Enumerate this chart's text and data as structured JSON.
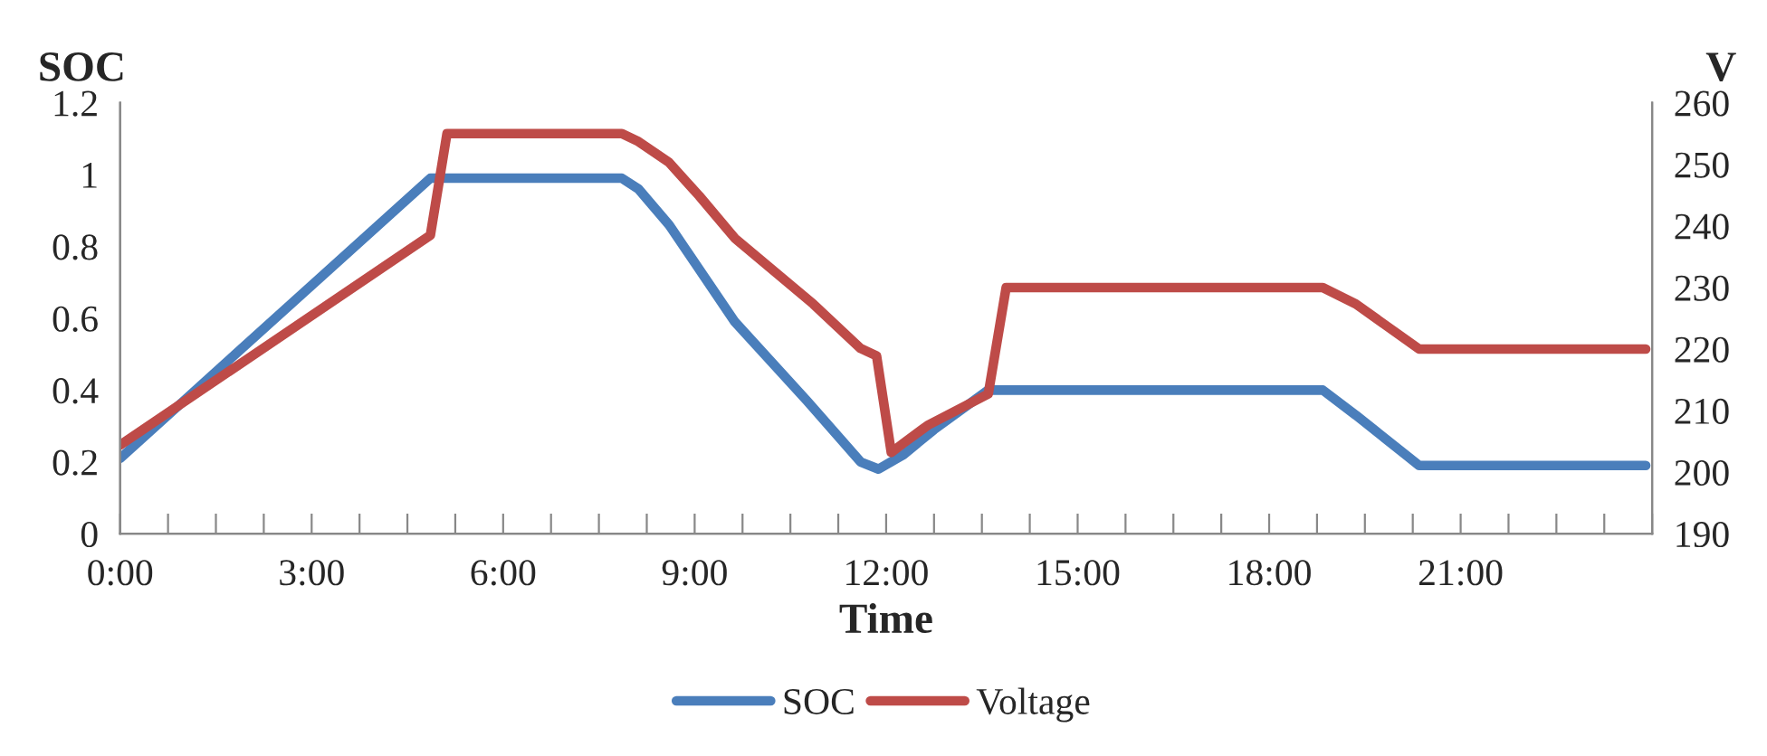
{
  "chart_data": {
    "type": "line",
    "xlabel": "Time",
    "ylabel": "SOC",
    "y2label": "V",
    "series": [
      {
        "name": "SOC",
        "color": "#4a7ebb",
        "x": [
          0,
          4.86,
          7.86,
          8.12,
          8.6,
          9.63,
          10.76,
          11.6,
          11.88,
          12.27,
          12.75,
          13.6,
          18.84,
          19.36,
          20.35,
          23.9
        ],
        "values": [
          0.21,
          0.99,
          0.99,
          0.96,
          0.86,
          0.59,
          0.37,
          0.2,
          0.18,
          0.22,
          0.29,
          0.4,
          0.4,
          0.33,
          0.19,
          0.19
        ]
      },
      {
        "name": "Voltage",
        "color": "#be4b48",
        "axis": "y2",
        "x": [
          0,
          4.86,
          5.12,
          7.86,
          8.12,
          8.6,
          9.07,
          9.63,
          10.86,
          11.6,
          11.85,
          12.08,
          12.27,
          12.65,
          13.6,
          13.88,
          18.84,
          19.36,
          20.35,
          23.9
        ],
        "values": [
          204.4,
          238.5,
          255,
          255,
          253.7,
          250.3,
          244.9,
          238,
          227.3,
          220.1,
          218.9,
          203.2,
          204.7,
          207.6,
          212.7,
          230,
          230,
          227.3,
          220,
          220
        ]
      }
    ],
    "xlim": [
      0,
      24
    ],
    "xticks": [
      {
        "value": 0,
        "label": "0:00"
      },
      {
        "value": 0.75,
        "label": null
      },
      {
        "value": 1.5,
        "label": null
      },
      {
        "value": 2.25,
        "label": null
      },
      {
        "value": 3,
        "label": "3:00"
      },
      {
        "value": 3.75,
        "label": null
      },
      {
        "value": 4.5,
        "label": null
      },
      {
        "value": 5.25,
        "label": null
      },
      {
        "value": 6,
        "label": "6:00"
      },
      {
        "value": 6.75,
        "label": null
      },
      {
        "value": 7.5,
        "label": null
      },
      {
        "value": 8.25,
        "label": null
      },
      {
        "value": 9,
        "label": "9:00"
      },
      {
        "value": 9.75,
        "label": null
      },
      {
        "value": 10.5,
        "label": null
      },
      {
        "value": 11.25,
        "label": null
      },
      {
        "value": 12,
        "label": "12:00"
      },
      {
        "value": 12.75,
        "label": null
      },
      {
        "value": 13.5,
        "label": null
      },
      {
        "value": 14.25,
        "label": null
      },
      {
        "value": 15,
        "label": "15:00"
      },
      {
        "value": 15.75,
        "label": null
      },
      {
        "value": 16.5,
        "label": null
      },
      {
        "value": 17.25,
        "label": null
      },
      {
        "value": 18,
        "label": "18:00"
      },
      {
        "value": 18.75,
        "label": null
      },
      {
        "value": 19.5,
        "label": null
      },
      {
        "value": 20.25,
        "label": null
      },
      {
        "value": 21,
        "label": "21:00"
      },
      {
        "value": 21.75,
        "label": null
      },
      {
        "value": 22.5,
        "label": null
      },
      {
        "value": 23.25,
        "label": null
      },
      {
        "value": 24,
        "label": null
      }
    ],
    "ylim": [
      0,
      1.2
    ],
    "yticks": [
      0,
      0.2,
      0.4,
      0.6,
      0.8,
      1,
      1.2
    ],
    "y2lim": [
      190,
      260
    ],
    "y2ticks": [
      190,
      200,
      210,
      220,
      230,
      240,
      250,
      260
    ],
    "legend": "bottom",
    "grid": false,
    "marker": "none",
    "line_style": "solid"
  }
}
